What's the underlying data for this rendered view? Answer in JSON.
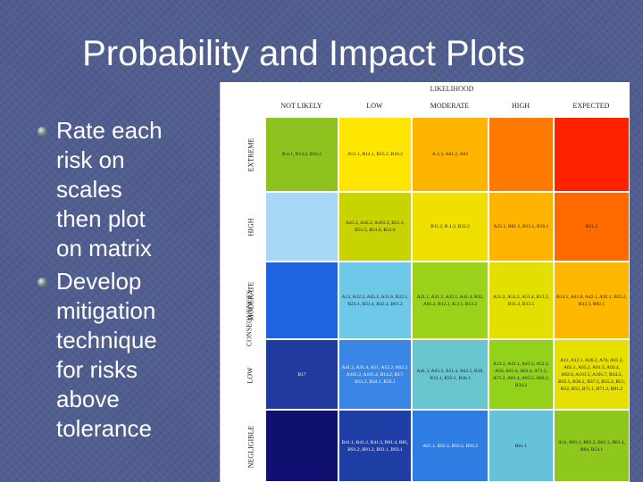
{
  "slide": {
    "title": "Probability and Impact Plots",
    "bullets": [
      {
        "text": "Rate each\nrisk on\nscales\nthen plot\non matrix",
        "icon": "sphere-bullet-icon"
      },
      {
        "text": "Develop\nmitigation\ntechnique\nfor risks\nabove\ntolerance",
        "icon": "sphere-bullet-icon"
      }
    ]
  },
  "matrix": {
    "likelihood_label": "LIKELIHOOD",
    "consequences_label": "CONSEQUENCES",
    "columns": [
      "NOT LIKELY",
      "LOW",
      "MODERATE",
      "HIGH",
      "EXPECTED"
    ],
    "rows": [
      {
        "label": "EXTREME",
        "cells": [
          "B.4.1, B13.2, B16.2",
          "A51.1, B14.1, B15.2, B16.2",
          "A.2.3, A61.2, A62",
          "",
          ""
        ]
      },
      {
        "label": "HIGH",
        "cells": [
          "",
          "A41.3, A42.2, A101.3, B21.1, B31.5, B31.6, B33.6",
          "B11.2, B.1.3, B32.2",
          "A55.1, B81.1, B15.1, B16.1",
          "B21.2"
        ]
      },
      {
        "label": "MODERATE",
        "cells": [
          "",
          "A13, A32.2, A45.2, A51.6, B22.1, B23.1, B31.4, B32.4, B61.2",
          "A21.1, A31.2, A32.1, A41.4, B32, A81.2, B12.1, B.3.1, B13.2",
          "A31.2, A52.2, A51.4, B12.2, B31.3, B33.5",
          "B14.1, A41.6, A42.1, A92.1, B33.2, B33.3, B82.1"
        ]
      },
      {
        "label": "LOW",
        "cells": [
          "B17",
          "A41.2, A31.4, A51, A52.2, A62.2, A101.2, A101.4, B14.2, B17, B31.2, B34.1, B33.1",
          "A41.3, A63.3, A51.4, A63.5, B18, B31.1, B33.1, B36.1",
          "A13.2, A43.1, A41.2, A52.2, A56, A61.6, A63.4, A71.3, A71.2, A81.4, A83.5, A82.2, B33.2",
          "A11, A12.1, A36.2, A76, A61.3, A65.1, A65.2, A81.3, A92.4, A92.6, A101.5, A101.7, B34.2, B35.1, B36.2, B37.2, B55.2, B51, B52, B55, B71.1, B71.2, B91.2"
        ]
      },
      {
        "label": "NEGLIGIBLE",
        "cells": [
          "",
          "B41.1, B41.2, B41.3, B61.4, B81, B91.2, B91.2, B92.1, B93.1",
          "A81.1, B92.3, B93.2, B93.3",
          "B61.1",
          "A31, B81.1, B81.2, B81.3, B81.4, B84, B54.1"
        ]
      }
    ],
    "colors": [
      [
        "#8ec21f",
        "#ffe600",
        "#ffb400",
        "#ff7a00",
        "#ff2200"
      ],
      [
        "#a9d8f6",
        "#c8d400",
        "#f0e000",
        "#ffb400",
        "#ff6a00"
      ],
      [
        "#1e63e0",
        "#6ec8e8",
        "#9bd21c",
        "#e3e000",
        "#ffb800"
      ],
      [
        "#203a9e",
        "#3a86e6",
        "#69c6d0",
        "#93d21a",
        "#e6df00"
      ],
      [
        "#101070",
        "#1e3ea6",
        "#2e7de3",
        "#66c2d8",
        "#8ec81d"
      ]
    ]
  }
}
